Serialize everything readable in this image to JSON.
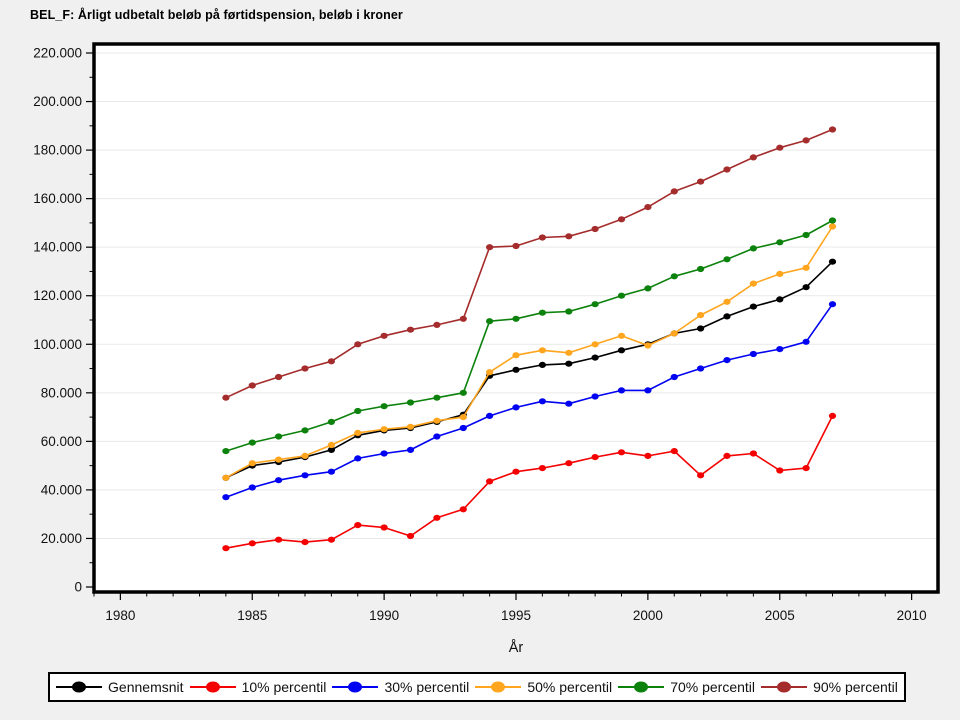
{
  "title": "BEL_F: Årligt udbetalt beløb på førtidspension, beløb i kroner",
  "chart_data": {
    "type": "line",
    "title": "BEL_F: Årligt udbetalt beløb på førtidspension, beløb i kroner",
    "xlabel": "År",
    "ylabel": "",
    "xlim": [
      1979,
      2011
    ],
    "ylim": [
      0,
      220000
    ],
    "x_major_ticks": [
      1980,
      1985,
      1990,
      1995,
      2000,
      2005,
      2010
    ],
    "x_minor_tick_step": 1,
    "y_major_ticks": [
      0,
      20000,
      40000,
      60000,
      80000,
      100000,
      120000,
      140000,
      160000,
      180000,
      200000,
      220000
    ],
    "y_tick_labels": [
      "0",
      "20.000",
      "40.000",
      "60.000",
      "80.000",
      "100.000",
      "120.000",
      "140.000",
      "160.000",
      "180.000",
      "200.000",
      "220.000"
    ],
    "y_minor_tick_step": 10000,
    "grid": "horizontal-major-only",
    "legend_position": "bottom",
    "background_color": "#f0f0f0",
    "plot_background_color": "#ffffff",
    "gridline_color": "#e9e9e9",
    "x": [
      1984,
      1985,
      1986,
      1987,
      1988,
      1989,
      1990,
      1991,
      1992,
      1993,
      1994,
      1995,
      1996,
      1997,
      1998,
      1999,
      2000,
      2001,
      2002,
      2003,
      2004,
      2005,
      2006,
      2007
    ],
    "series": [
      {
        "name": "Gennemsnit",
        "color": "#000000",
        "values": [
          45000,
          50000,
          51500,
          53500,
          56500,
          62500,
          64500,
          65500,
          68000,
          71000,
          87000,
          89500,
          91500,
          92000,
          94500,
          97500,
          100000,
          104500,
          106500,
          111500,
          115500,
          118500,
          123500,
          134000
        ]
      },
      {
        "name": "10% percentil",
        "color": "#f50000",
        "values": [
          16000,
          18000,
          19500,
          18500,
          19500,
          25500,
          24500,
          21000,
          28500,
          32000,
          43500,
          47500,
          49000,
          51000,
          53500,
          55500,
          54000,
          56000,
          46000,
          54000,
          55000,
          48000,
          49000,
          70500
        ]
      },
      {
        "name": "30% percentil",
        "color": "#0202f2",
        "values": [
          37000,
          41000,
          44000,
          46000,
          47500,
          53000,
          55000,
          56500,
          62000,
          65500,
          70500,
          74000,
          76500,
          75500,
          78500,
          81000,
          81000,
          86500,
          90000,
          93500,
          96000,
          98000,
          101000,
          116500
        ]
      },
      {
        "name": "50% percentil",
        "color": "#ffa51e",
        "values": [
          45000,
          51000,
          52500,
          54000,
          58500,
          63500,
          65000,
          66000,
          68500,
          70000,
          88500,
          95500,
          97500,
          96500,
          100000,
          103500,
          99500,
          104500,
          112000,
          117500,
          125000,
          129000,
          131500,
          148500
        ]
      },
      {
        "name": "70% percentil",
        "color": "#0c820c",
        "values": [
          56000,
          59500,
          62000,
          64500,
          68000,
          72500,
          74500,
          76000,
          78000,
          80000,
          109500,
          110500,
          113000,
          113500,
          116500,
          120000,
          123000,
          128000,
          131000,
          135000,
          139500,
          142000,
          145000,
          151000
        ]
      },
      {
        "name": "90% percentil",
        "color": "#a52c2c",
        "values": [
          78000,
          83000,
          86500,
          90000,
          93000,
          100000,
          103500,
          106000,
          108000,
          110500,
          140000,
          140500,
          144000,
          144500,
          147500,
          151500,
          156500,
          163000,
          167000,
          172000,
          177000,
          181000,
          184000,
          188500
        ]
      }
    ]
  }
}
